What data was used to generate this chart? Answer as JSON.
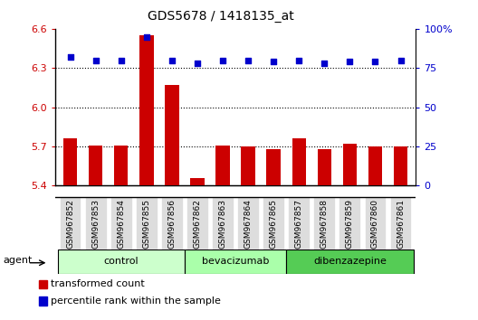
{
  "title": "GDS5678 / 1418135_at",
  "samples": [
    "GSM967852",
    "GSM967853",
    "GSM967854",
    "GSM967855",
    "GSM967856",
    "GSM967862",
    "GSM967863",
    "GSM967864",
    "GSM967865",
    "GSM967857",
    "GSM967858",
    "GSM967859",
    "GSM967860",
    "GSM967861"
  ],
  "bar_values": [
    5.76,
    5.71,
    5.71,
    6.55,
    6.17,
    5.46,
    5.71,
    5.7,
    5.68,
    5.76,
    5.68,
    5.72,
    5.7,
    5.7
  ],
  "percentile_values": [
    82,
    80,
    80,
    95,
    80,
    78,
    80,
    80,
    79,
    80,
    78,
    79,
    79,
    80
  ],
  "bar_color": "#cc0000",
  "percentile_color": "#0000cc",
  "ylim_left": [
    5.4,
    6.6
  ],
  "ylim_right": [
    0,
    100
  ],
  "yticks_left": [
    5.4,
    5.7,
    6.0,
    6.3,
    6.6
  ],
  "yticks_right": [
    0,
    25,
    50,
    75,
    100
  ],
  "ytick_labels_right": [
    "0",
    "25",
    "50",
    "75",
    "100%"
  ],
  "groups": [
    {
      "label": "control",
      "start": 0,
      "end": 5,
      "color": "#ccffcc"
    },
    {
      "label": "bevacizumab",
      "start": 5,
      "end": 9,
      "color": "#aaffaa"
    },
    {
      "label": "dibenzazepine",
      "start": 9,
      "end": 14,
      "color": "#55cc55"
    }
  ],
  "agent_label": "agent",
  "legend_bar_label": "transformed count",
  "legend_dot_label": "percentile rank within the sample",
  "tick_label_color_left": "#cc0000",
  "tick_label_color_right": "#0000cc",
  "grid_dotted_lines": [
    5.7,
    6.0,
    6.3
  ],
  "xticklabel_bg": "#dddddd"
}
